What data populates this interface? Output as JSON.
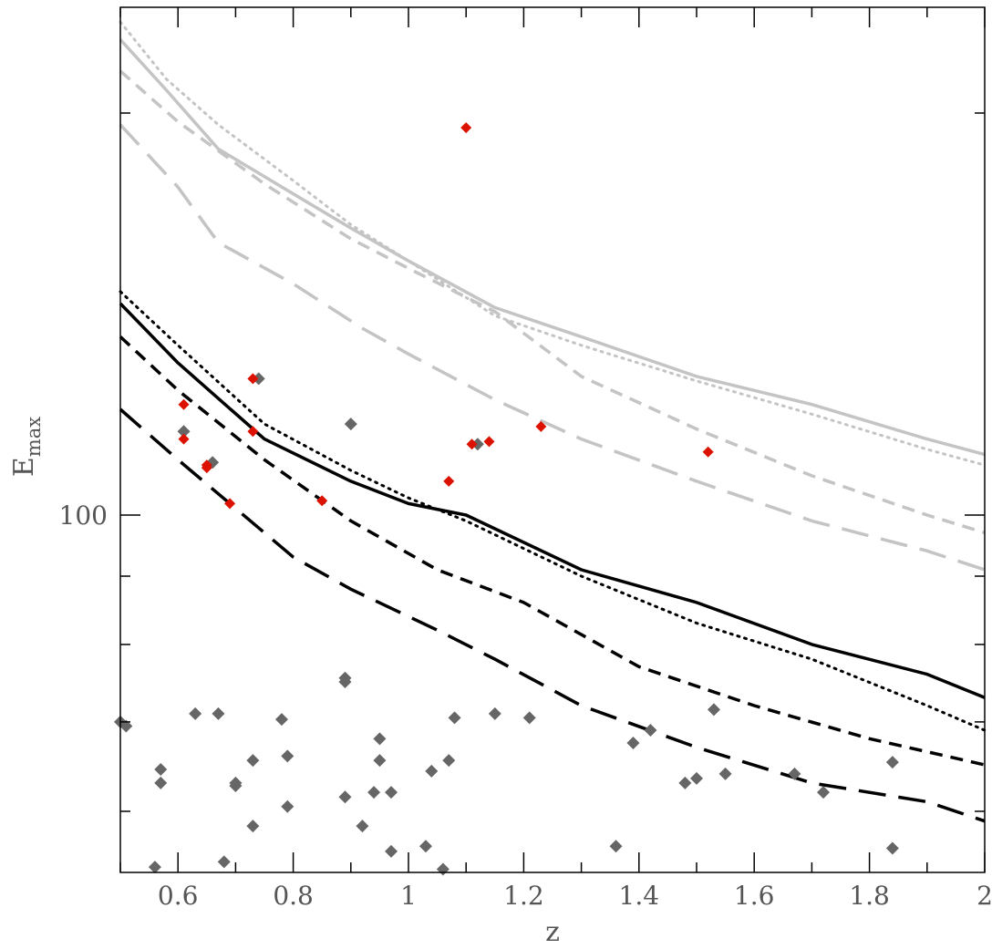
{
  "chart_data": {
    "type": "scatter",
    "xlabel": "z",
    "ylabel": "E",
    "ylabel_subscript": "max",
    "xlim": [
      0.5,
      2.0
    ],
    "ylim": [
      54,
      240
    ],
    "y_scale": "log",
    "grid": false,
    "legend": "none",
    "x_ticks": [
      {
        "value": 0.6,
        "label": "0.6"
      },
      {
        "value": 0.8,
        "label": "0.8"
      },
      {
        "value": 1.0,
        "label": "1"
      },
      {
        "value": 1.2,
        "label": "1.2"
      },
      {
        "value": 1.4,
        "label": "1.4"
      },
      {
        "value": 1.6,
        "label": "1.6"
      },
      {
        "value": 1.8,
        "label": "1.8"
      },
      {
        "value": 2.0,
        "label": "2"
      }
    ],
    "y_major_ticks": [
      {
        "value": 100,
        "label": "100"
      }
    ],
    "colors": {
      "gray_points": "#666666",
      "red_points": "#dd1100",
      "black_curves": "#000000",
      "gray_curves": "#c4c4c4",
      "axes": "#000000",
      "labels": "#555555"
    },
    "lines": [
      {
        "color": "gray",
        "style": "dotted",
        "x": [
          0.5,
          0.58,
          0.67,
          0.8,
          0.9,
          1.0,
          1.15,
          1.3,
          1.5,
          1.7,
          1.9,
          2.0
        ],
        "y": [
          234,
          212,
          196,
          178,
          165,
          155,
          141,
          134,
          126,
          119,
          112,
          109
        ]
      },
      {
        "color": "gray",
        "style": "solid",
        "x": [
          0.5,
          0.58,
          0.67,
          0.8,
          0.9,
          1.0,
          1.15,
          1.3,
          1.5,
          1.7,
          1.9,
          2.0
        ],
        "y": [
          227,
          208,
          188,
          174,
          164,
          155,
          143,
          136,
          127,
          121,
          114,
          111
        ]
      },
      {
        "color": "gray",
        "style": "dashed",
        "x": [
          0.5,
          0.6,
          0.75,
          0.9,
          1.0,
          1.15,
          1.3,
          1.5,
          1.7,
          1.9,
          2.0
        ],
        "y": [
          215,
          197,
          177,
          161,
          153,
          142,
          127,
          116,
          107,
          100,
          97
        ]
      },
      {
        "color": "gray",
        "style": "long-dashed",
        "x": [
          0.5,
          0.6,
          0.67,
          0.8,
          0.92,
          1.0,
          1.15,
          1.3,
          1.5,
          1.7,
          1.9,
          2.0
        ],
        "y": [
          196,
          176,
          160,
          149,
          138,
          132,
          122,
          114,
          106,
          99,
          94,
          91
        ]
      },
      {
        "color": "black",
        "style": "dotted",
        "x": [
          0.5,
          0.6,
          0.75,
          0.9,
          1.0,
          1.1,
          1.3,
          1.5,
          1.7,
          1.9,
          2.0
        ],
        "y": [
          147,
          134,
          117,
          108,
          103,
          99,
          90,
          83,
          78,
          72,
          69
        ]
      },
      {
        "color": "black",
        "style": "solid",
        "x": [
          0.5,
          0.6,
          0.75,
          0.9,
          1.0,
          1.1,
          1.3,
          1.5,
          1.7,
          1.9,
          2.0
        ],
        "y": [
          144,
          130,
          114,
          106,
          102,
          100,
          91,
          86,
          80,
          76,
          73
        ]
      },
      {
        "color": "black",
        "style": "dashed",
        "x": [
          0.5,
          0.6,
          0.75,
          0.9,
          1.05,
          1.2,
          1.4,
          1.6,
          1.8,
          2.0
        ],
        "y": [
          136,
          124,
          110,
          99,
          91,
          86,
          77,
          72,
          68,
          65
        ]
      },
      {
        "color": "black",
        "style": "long-dashed",
        "x": [
          0.5,
          0.6,
          0.8,
          0.9,
          1.05,
          1.15,
          1.3,
          1.5,
          1.7,
          1.9,
          2.0
        ],
        "y": [
          120,
          110,
          93,
          88,
          82,
          78,
          72,
          67,
          63,
          61,
          59
        ]
      }
    ],
    "series": [
      {
        "color": "gray",
        "x": [
          0.5,
          0.51,
          0.56,
          0.57,
          0.57,
          0.61,
          0.63,
          0.66,
          0.67,
          0.68,
          0.7,
          0.7,
          0.73,
          0.73,
          0.74,
          0.78,
          0.79,
          0.79,
          0.89,
          0.89,
          0.89,
          0.9,
          0.92,
          0.94,
          0.95,
          0.95,
          0.97,
          0.97,
          1.03,
          1.04,
          1.06,
          1.07,
          1.08,
          1.12,
          1.15,
          1.21,
          1.36,
          1.39,
          1.42,
          1.48,
          1.5,
          1.53,
          1.55,
          1.67,
          1.72,
          1.84,
          1.84
        ],
        "y": [
          70.0,
          69.5,
          54.5,
          64.5,
          63.0,
          115.5,
          71.0,
          109.5,
          71.0,
          55.0,
          62.7,
          63.0,
          65.5,
          58.5,
          126.5,
          70.3,
          66.0,
          60.5,
          75.5,
          75.0,
          61.5,
          117.0,
          58.5,
          62.0,
          68.0,
          65.5,
          62.0,
          56.0,
          56.5,
          64.3,
          54.3,
          65.5,
          70.5,
          113.0,
          71.0,
          70.5,
          56.5,
          67.5,
          69.0,
          63.0,
          63.5,
          71.5,
          64.0,
          64.0,
          62.0,
          65.3,
          56.3
        ]
      },
      {
        "color": "red",
        "x": [
          1.1,
          0.73,
          0.61,
          0.73,
          0.61,
          0.65,
          0.65,
          0.69,
          0.85,
          1.07,
          1.11,
          1.14,
          1.23,
          1.52
        ],
        "y": [
          195,
          126.5,
          121.0,
          115.5,
          114.0,
          109.0,
          108.5,
          102.0,
          102.5,
          106.0,
          113.0,
          113.5,
          116.5,
          111.5
        ]
      }
    ]
  }
}
